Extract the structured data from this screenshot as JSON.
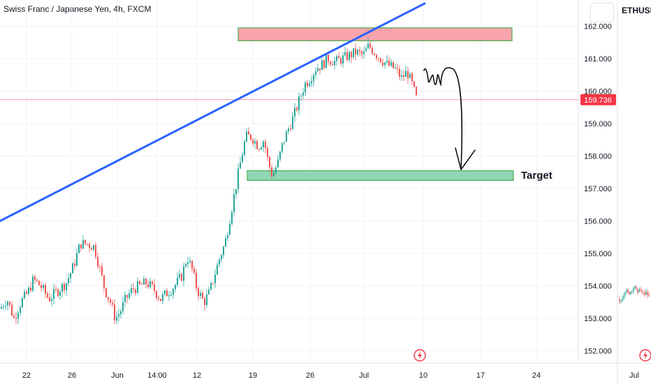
{
  "header": {
    "symbol_title": "Swiss Franc / Japanese Yen, 4h, FXCM"
  },
  "side_panel": {
    "symbol": "ETHUSDT,"
  },
  "chart_data": {
    "type": "candlestick",
    "ylim": [
      151.5,
      162.6
    ],
    "y_ticks": [
      "152.000",
      "153.000",
      "154.000",
      "155.000",
      "156.000",
      "157.000",
      "158.000",
      "159.000",
      "160.000",
      "161.000",
      "162.000"
    ],
    "x_ticks": [
      "22",
      "26",
      "Jun",
      "14:00",
      "12",
      "19",
      "26",
      "Jul",
      "10",
      "17",
      "24"
    ],
    "side_x_tick": "Jul",
    "current_price": "159.736",
    "current_price_value": 159.736,
    "price_path": [
      [
        0,
        153.3
      ],
      [
        10,
        153.6
      ],
      [
        20,
        153.0
      ],
      [
        30,
        153.5
      ],
      [
        40,
        153.8
      ],
      [
        48,
        154.2
      ],
      [
        58,
        154.0
      ],
      [
        70,
        153.6
      ],
      [
        85,
        153.9
      ],
      [
        95,
        154.1
      ],
      [
        105,
        154.6
      ],
      [
        115,
        155.3
      ],
      [
        125,
        155.3
      ],
      [
        135,
        155.2
      ],
      [
        142,
        154.6
      ],
      [
        150,
        153.9
      ],
      [
        158,
        153.5
      ],
      [
        165,
        153.0
      ],
      [
        172,
        153.2
      ],
      [
        180,
        153.6
      ],
      [
        190,
        153.9
      ],
      [
        200,
        154.0
      ],
      [
        210,
        154.1
      ],
      [
        220,
        153.9
      ],
      [
        230,
        153.6
      ],
      [
        240,
        153.8
      ],
      [
        250,
        154.0
      ],
      [
        260,
        154.3
      ],
      [
        268,
        154.9
      ],
      [
        275,
        154.5
      ],
      [
        282,
        153.9
      ],
      [
        292,
        153.5
      ],
      [
        300,
        153.8
      ],
      [
        308,
        154.4
      ],
      [
        315,
        154.9
      ],
      [
        322,
        155.3
      ],
      [
        330,
        156.2
      ],
      [
        338,
        157.1
      ],
      [
        346,
        158.0
      ],
      [
        352,
        158.6
      ],
      [
        360,
        158.6
      ],
      [
        370,
        158.3
      ],
      [
        378,
        158.5
      ],
      [
        384,
        157.8
      ],
      [
        390,
        157.4
      ],
      [
        398,
        157.8
      ],
      [
        405,
        158.4
      ],
      [
        412,
        158.8
      ],
      [
        420,
        159.2
      ],
      [
        428,
        159.7
      ],
      [
        436,
        160.2
      ],
      [
        444,
        160.4
      ],
      [
        452,
        160.7
      ],
      [
        460,
        160.8
      ],
      [
        470,
        161.0
      ],
      [
        480,
        160.9
      ],
      [
        490,
        161.0
      ],
      [
        500,
        161.1
      ],
      [
        510,
        161.2
      ],
      [
        520,
        161.1
      ],
      [
        528,
        161.4
      ],
      [
        536,
        161.2
      ],
      [
        545,
        161.0
      ],
      [
        555,
        160.8
      ],
      [
        565,
        160.7
      ],
      [
        575,
        160.4
      ],
      [
        583,
        160.6
      ],
      [
        590,
        160.2
      ],
      [
        597,
        159.7
      ]
    ],
    "annotations": {
      "trendline": {
        "from": [
          0,
          156.0
        ],
        "to": [
          608,
          162.7
        ],
        "color": "#2962ff"
      },
      "resistance_zone": {
        "x0": 341,
        "x1": 733,
        "y_low": 161.55,
        "y_high": 161.95,
        "fill": "#f7a4aa",
        "border": "#4caf50"
      },
      "target_zone": {
        "x0": 354,
        "x1": 735,
        "y_low": 157.25,
        "y_high": 157.55,
        "fill": "#8fd6b4",
        "border": "#4caf50"
      },
      "target_label": "Target"
    },
    "colors": {
      "up": "#26a69a",
      "down": "#ef5350",
      "price_line": "#f23645",
      "grid": "#f0f3fa"
    }
  }
}
